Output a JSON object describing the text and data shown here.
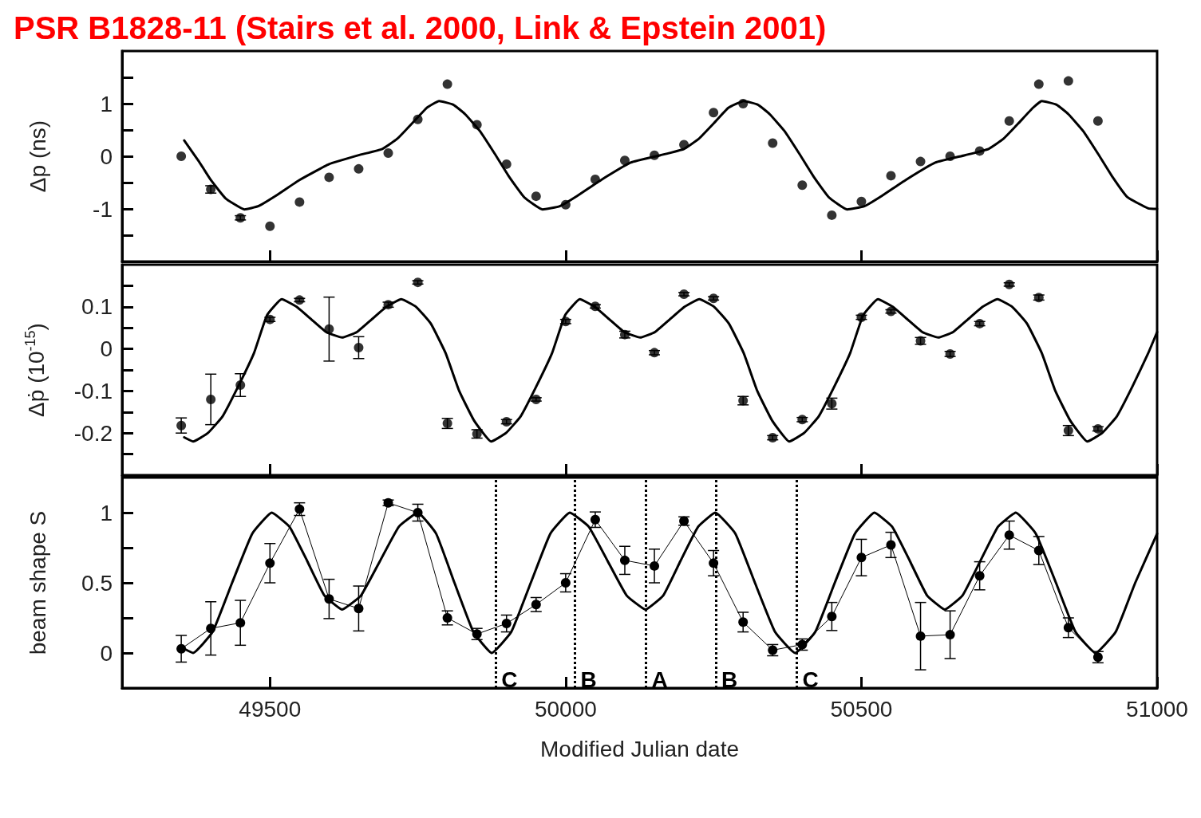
{
  "chart_data": [
    {
      "type": "scatter",
      "title": "PSR B1828-11 (Stairs et al. 2000, Link & Epstein 2001)",
      "ylabel": "Δp (ns)",
      "tick_labels": "y",
      "xlim": [
        49250,
        51000
      ],
      "xticks": [
        49500,
        50000,
        50500,
        51000
      ],
      "ylim": [
        -2,
        2
      ],
      "yticks": [
        {
          "value": -1.5,
          "label": null
        },
        -1,
        {
          "value": -0.5,
          "label": null
        },
        0,
        {
          "value": 0.5,
          "label": null
        },
        1,
        {
          "value": 1.5,
          "label": null
        }
      ],
      "x": [
        49350,
        49400,
        49450,
        49500,
        49550,
        49600,
        49650,
        49700,
        49750,
        49800,
        49850,
        49900,
        49950,
        50000,
        50050,
        50100,
        50150,
        50200,
        50250,
        50300,
        50350,
        50400,
        50450,
        50500,
        50550,
        50600,
        50650,
        50700,
        50750,
        50800,
        50850,
        50900
      ],
      "series": [
        {
          "marker": "circle",
          "color": "#000000",
          "values": [
            0.0,
            -0.63,
            -1.17,
            -1.33,
            -0.87,
            -0.4,
            -0.24,
            0.06,
            0.7,
            1.37,
            0.6,
            -0.15,
            -0.76,
            -0.92,
            -0.44,
            -0.08,
            0.02,
            0.22,
            0.83,
            1.0,
            0.25,
            -0.55,
            -1.12,
            -0.86,
            -0.37,
            -0.1,
            0.0,
            0.1,
            0.67,
            1.37,
            1.43,
            0.67
          ],
          "errors": [
            null,
            0.07,
            0.04,
            null,
            null,
            null,
            null,
            null,
            null,
            null,
            null,
            null,
            null,
            null,
            null,
            null,
            null,
            null,
            null,
            null,
            null,
            null,
            null,
            null,
            null,
            null,
            null,
            null,
            null,
            null,
            null,
            null
          ]
        },
        {
          "type": "line",
          "marker": "none",
          "color": "#000000",
          "x": [
            49355,
            49380,
            49400,
            49425,
            49457,
            49480,
            49510,
            49550,
            49600,
            49650,
            49690,
            49715,
            49740,
            49765,
            49786,
            49810,
            49830,
            49855,
            49880,
            49905,
            49930,
            49961,
            49990,
            50020,
            50060,
            50110,
            50160,
            50200,
            50225,
            50250,
            50275,
            50301,
            50325,
            50345,
            50370,
            50395,
            50420,
            50445,
            50476,
            50505,
            50535,
            50575,
            50625,
            50675,
            50715,
            50740,
            50765,
            50790,
            50805,
            50830,
            50850,
            50875,
            50900,
            50925,
            50950,
            50985,
            51000
          ],
          "values": [
            0.3,
            -0.1,
            -0.45,
            -0.8,
            -1.01,
            -0.95,
            -0.75,
            -0.45,
            -0.15,
            0.02,
            0.14,
            0.33,
            0.62,
            0.92,
            1.05,
            0.98,
            0.8,
            0.48,
            0.05,
            -0.4,
            -0.78,
            -1.01,
            -0.95,
            -0.75,
            -0.45,
            -0.12,
            0.02,
            0.14,
            0.33,
            0.62,
            0.92,
            1.05,
            0.98,
            0.8,
            0.48,
            0.05,
            -0.4,
            -0.78,
            -1.01,
            -0.95,
            -0.75,
            -0.45,
            -0.12,
            0.02,
            0.14,
            0.33,
            0.62,
            0.92,
            1.05,
            0.98,
            0.8,
            0.48,
            0.05,
            -0.4,
            -0.78,
            -0.99,
            -1.0
          ]
        }
      ]
    },
    {
      "type": "scatter",
      "ylabel": "Δṗ (10$^{-15}$)",
      "tick_labels": "y",
      "xlim": [
        49250,
        51000
      ],
      "xticks": [
        49500,
        50000,
        50500,
        51000
      ],
      "ylim": [
        -0.3,
        0.2
      ],
      "yticks": [
        {
          "value": -0.25,
          "label": null
        },
        -0.2,
        {
          "value": -0.15,
          "label": null
        },
        -0.1,
        {
          "value": -0.05,
          "label": null
        },
        0,
        {
          "value": 0.05,
          "label": null
        },
        0.1,
        {
          "value": 0.15,
          "label": null
        }
      ],
      "x": [
        49350,
        49400,
        49450,
        49500,
        49550,
        49600,
        49650,
        49700,
        49750,
        49800,
        49850,
        49900,
        49950,
        50000,
        50050,
        50100,
        50150,
        50200,
        50250,
        50300,
        50350,
        50400,
        50450,
        50500,
        50550,
        50600,
        50650,
        50700,
        50750,
        50800,
        50850,
        50900
      ],
      "series": [
        {
          "marker": "circle",
          "color": "#000000",
          "values": [
            -0.182,
            -0.12,
            -0.086,
            0.07,
            0.116,
            0.047,
            0.003,
            0.105,
            0.158,
            -0.177,
            -0.202,
            -0.173,
            -0.12,
            0.065,
            0.101,
            0.034,
            -0.009,
            0.13,
            0.12,
            -0.123,
            -0.211,
            -0.168,
            -0.13,
            0.075,
            0.089,
            0.019,
            -0.012,
            0.06,
            0.153,
            0.122,
            -0.194,
            -0.19
          ],
          "errors": [
            0.018,
            0.06,
            0.027,
            0.005,
            0.004,
            0.076,
            0.026,
            0.006,
            0.004,
            0.012,
            0.01,
            0.005,
            0.004,
            0.005,
            0.004,
            0.008,
            0.005,
            0.004,
            0.004,
            0.01,
            0.005,
            0.005,
            0.013,
            0.005,
            0.004,
            0.008,
            0.006,
            0.005,
            0.004,
            0.006,
            0.012,
            0.005
          ]
        },
        {
          "type": "line",
          "marker": "none",
          "color": "#000000",
          "x": [
            49355,
            49370,
            49395,
            49420,
            49446,
            49473,
            49495,
            49520,
            49545,
            49570,
            49595,
            49622,
            49647,
            49672,
            49697,
            49722,
            49747,
            49772,
            49797,
            49820,
            49845,
            49874,
            49899,
            49924,
            49950,
            49977,
            49999,
            50024,
            50049,
            50074,
            50099,
            50126,
            50151,
            50176,
            50201,
            50226,
            50251,
            50276,
            50301,
            50324,
            50349,
            50378,
            50403,
            50428,
            50454,
            50481,
            50503,
            50528,
            50553,
            50578,
            50603,
            50630,
            50655,
            50680,
            50705,
            50730,
            50755,
            50780,
            50805,
            50828,
            50853,
            50882,
            50907,
            50932,
            50958,
            50985,
            51000
          ],
          "values": [
            -0.21,
            -0.22,
            -0.2,
            -0.16,
            -0.09,
            -0.01,
            0.08,
            0.118,
            0.1,
            0.07,
            0.04,
            0.027,
            0.04,
            0.07,
            0.1,
            0.118,
            0.1,
            0.06,
            -0.01,
            -0.1,
            -0.17,
            -0.22,
            -0.2,
            -0.16,
            -0.09,
            -0.01,
            0.08,
            0.118,
            0.1,
            0.07,
            0.04,
            0.027,
            0.04,
            0.07,
            0.1,
            0.118,
            0.1,
            0.06,
            -0.01,
            -0.1,
            -0.17,
            -0.22,
            -0.2,
            -0.16,
            -0.09,
            -0.01,
            0.08,
            0.118,
            0.1,
            0.07,
            0.04,
            0.027,
            0.04,
            0.07,
            0.1,
            0.118,
            0.1,
            0.06,
            -0.01,
            -0.1,
            -0.17,
            -0.22,
            -0.2,
            -0.16,
            -0.09,
            -0.01,
            0.04
          ]
        }
      ]
    },
    {
      "type": "line",
      "ylabel": "beam shape S",
      "xlabel": "Modified Julian date",
      "xlim": [
        49250,
        51000
      ],
      "xticks": [
        49500,
        50000,
        50500,
        51000
      ],
      "ylim": [
        -0.25,
        1.25
      ],
      "yticks": [
        0,
        {
          "value": 0.25,
          "label": null
        },
        0.5,
        {
          "value": 0.75,
          "label": null
        },
        1
      ],
      "x": [
        49350,
        49400,
        49450,
        49500,
        49550,
        49600,
        49650,
        49700,
        49750,
        49800,
        49850,
        49900,
        49950,
        50000,
        50050,
        50100,
        50150,
        50200,
        50250,
        50300,
        50350,
        50400,
        50450,
        50500,
        50550,
        50600,
        50650,
        50700,
        50750,
        50800,
        50850,
        50900
      ],
      "ref_lines": [
        {
          "axis": "x",
          "value": 49882,
          "label": "C",
          "line_style": "dotted"
        },
        {
          "axis": "x",
          "value": 50016,
          "label": "B",
          "line_style": "dotted"
        },
        {
          "axis": "x",
          "value": 50136,
          "label": "A",
          "line_style": "dotted"
        },
        {
          "axis": "x",
          "value": 50254,
          "label": "B",
          "line_style": "dotted"
        },
        {
          "axis": "x",
          "value": 50391,
          "label": "C",
          "line_style": "dotted"
        }
      ],
      "series": [
        {
          "marker": "circle",
          "color": "#000000",
          "values": [
            0.03,
            0.175,
            0.215,
            0.64,
            1.025,
            0.385,
            0.317,
            1.07,
            1.0,
            0.25,
            0.135,
            0.21,
            0.345,
            0.5,
            0.95,
            0.66,
            0.62,
            0.94,
            0.64,
            0.22,
            0.02,
            0.06,
            0.26,
            0.68,
            0.77,
            0.12,
            0.13,
            0.55,
            0.84,
            0.73,
            0.18,
            -0.03
          ],
          "errors": [
            0.095,
            0.19,
            0.16,
            0.14,
            0.045,
            0.14,
            0.16,
            0.02,
            0.06,
            0.05,
            0.04,
            0.06,
            0.05,
            0.065,
            0.055,
            0.1,
            0.12,
            0.03,
            0.09,
            0.07,
            0.04,
            0.04,
            0.1,
            0.13,
            0.09,
            0.24,
            0.17,
            0.1,
            0.1,
            0.1,
            0.07,
            0.04
          ]
        },
        {
          "marker": "none",
          "color": "#000000",
          "x": [
            49355,
            49370,
            49403,
            49436,
            49470,
            49503,
            49533,
            49563,
            49592,
            49622,
            49654,
            49686,
            49718,
            49750,
            49781,
            49812,
            49844,
            49875,
            49908,
            49941,
            49974,
            50007,
            50039,
            50071,
            50103,
            50135,
            50165,
            50194,
            50224,
            50253,
            50287,
            50320,
            50354,
            50388,
            50422,
            50455,
            50489,
            50522,
            50552,
            50582,
            50611,
            50641,
            50671,
            50701,
            50731,
            50761,
            50795,
            50829,
            50862,
            50896,
            50930,
            50963,
            51000
          ],
          "values": [
            0.03,
            0.0,
            0.15,
            0.5,
            0.85,
            1.0,
            0.9,
            0.655,
            0.41,
            0.31,
            0.41,
            0.655,
            0.9,
            1.0,
            0.85,
            0.5,
            0.15,
            0.0,
            0.15,
            0.5,
            0.85,
            1.0,
            0.9,
            0.655,
            0.41,
            0.31,
            0.41,
            0.655,
            0.9,
            1.0,
            0.85,
            0.5,
            0.15,
            0.0,
            0.15,
            0.5,
            0.85,
            1.0,
            0.9,
            0.655,
            0.41,
            0.31,
            0.41,
            0.655,
            0.9,
            1.0,
            0.85,
            0.5,
            0.15,
            0.0,
            0.15,
            0.5,
            0.85
          ]
        }
      ]
    }
  ]
}
